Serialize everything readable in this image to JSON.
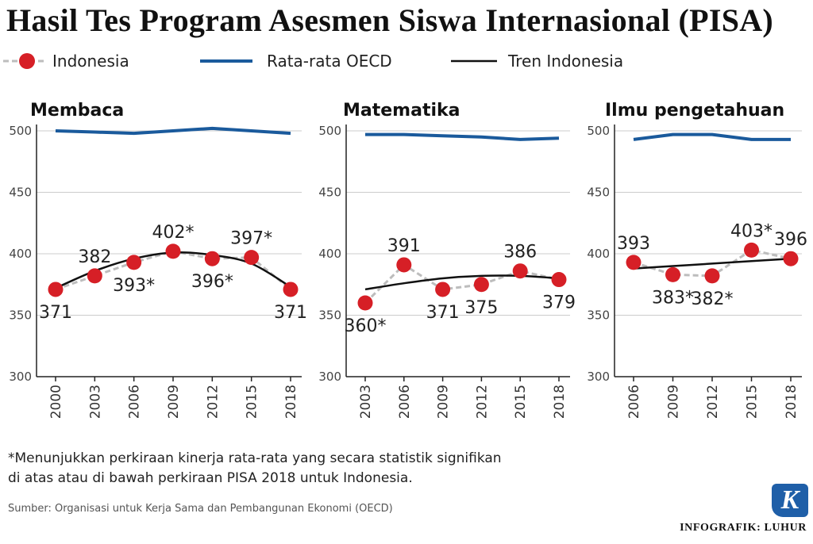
{
  "title": "Hasil Tes Program Asesmen Siswa Internasional (PISA)",
  "legend": {
    "indonesia": "Indonesia",
    "oecd": "Rata-rata OECD",
    "trend": "Tren Indonesia"
  },
  "colors": {
    "oecd": "#1a5a9c",
    "indonesia_marker": "#d61f26",
    "indonesia_line": "#bdbdbd",
    "trend": "#111111",
    "axis_text": "#333333",
    "grid": "#cccccc",
    "logo": "#1f5fa8"
  },
  "chart_data": [
    {
      "type": "line",
      "title": "Membaca",
      "ylim": [
        300,
        500
      ],
      "yticks": [
        300,
        350,
        400,
        450,
        500
      ],
      "categories": [
        "2000",
        "2003",
        "2006",
        "2009",
        "2012",
        "2015",
        "2018"
      ],
      "series": [
        {
          "name": "Indonesia",
          "values": [
            371,
            382,
            393,
            402,
            396,
            397,
            371
          ],
          "labels": [
            "371",
            "382",
            "393*",
            "402*",
            "396*",
            "397*",
            "371"
          ]
        },
        {
          "name": "Rata-rata OECD",
          "values": [
            500,
            499,
            498,
            500,
            502,
            500,
            498
          ]
        },
        {
          "name": "Tren Indonesia",
          "values": [
            372,
            386,
            396,
            401,
            399,
            392,
            373
          ]
        }
      ]
    },
    {
      "type": "line",
      "title": "Matematika",
      "ylim": [
        300,
        500
      ],
      "yticks": [
        300,
        350,
        400,
        450,
        500
      ],
      "categories": [
        "2003",
        "2006",
        "2009",
        "2012",
        "2015",
        "2018"
      ],
      "series": [
        {
          "name": "Indonesia",
          "values": [
            360,
            391,
            371,
            375,
            386,
            379
          ],
          "labels": [
            "360*",
            "391",
            "371",
            "375",
            "386",
            "379"
          ]
        },
        {
          "name": "Rata-rata OECD",
          "values": [
            497,
            497,
            496,
            495,
            493,
            494
          ]
        },
        {
          "name": "Tren Indonesia",
          "values": [
            371,
            376,
            380,
            382,
            382,
            380
          ]
        }
      ]
    },
    {
      "type": "line",
      "title": "Ilmu pengetahuan",
      "ylim": [
        300,
        500
      ],
      "yticks": [
        300,
        350,
        400,
        450,
        500
      ],
      "categories": [
        "2006",
        "2009",
        "2012",
        "2015",
        "2018"
      ],
      "series": [
        {
          "name": "Indonesia",
          "values": [
            393,
            383,
            382,
            403,
            396
          ],
          "labels": [
            "393",
            "383*",
            "382*",
            "403*",
            "396"
          ]
        },
        {
          "name": "Rata-rata OECD",
          "values": [
            493,
            497,
            497,
            493,
            493
          ]
        },
        {
          "name": "Tren Indonesia",
          "values": [
            388,
            390,
            392,
            394,
            396
          ]
        }
      ]
    }
  ],
  "footnote": {
    "line1": "*Menunjukkan perkiraan kinerja rata-rata yang secara statistik signifikan",
    "line2": "di atas atau di bawah perkiraan PISA 2018 untuk Indonesia."
  },
  "source": "Sumber: Organisasi untuk Kerja Sama dan Pembangunan Ekonomi (OECD)",
  "credit": "INFOGRAFIK: LUHUR",
  "logo_text": "K"
}
